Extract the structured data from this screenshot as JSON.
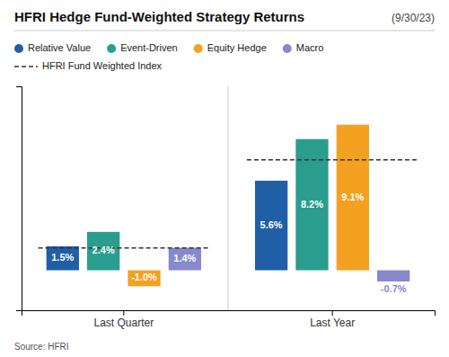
{
  "chart_data": {
    "type": "bar",
    "title": "HFRI Hedge Fund-Weighted Strategy Returns",
    "subtitle": "(9/30/23)",
    "annotations": [
      "Source: HFRI"
    ],
    "categories": [
      "Last Quarter",
      "Last Year"
    ],
    "series": [
      {
        "name": "Relative Value",
        "color": "#1f5fa6",
        "values": [
          1.5,
          5.6
        ],
        "value_labels": [
          "1.5%",
          "5.6%"
        ]
      },
      {
        "name": "Event-Driven",
        "color": "#2a9d8f",
        "values": [
          2.4,
          8.2
        ],
        "value_labels": [
          "2.4%",
          "8.2%"
        ]
      },
      {
        "name": "Equity Hedge",
        "color": "#f4a122",
        "values": [
          -1.0,
          9.1
        ],
        "value_labels": [
          "-1.0%",
          "9.1%"
        ]
      },
      {
        "name": "Macro",
        "color": "#8888cc",
        "values": [
          1.4,
          -0.7
        ],
        "value_labels": [
          "1.4%",
          "-0.7%"
        ]
      },
      {
        "name": "HFRI Fund Weighted Index",
        "type": "line",
        "line_style": "dashed",
        "color": "#333333",
        "values": [
          1.4,
          6.9
        ]
      }
    ],
    "ylim": [
      -2.5,
      11.5
    ],
    "data_labels": true,
    "tick_labels": "x",
    "grid": false,
    "legend": "top"
  }
}
